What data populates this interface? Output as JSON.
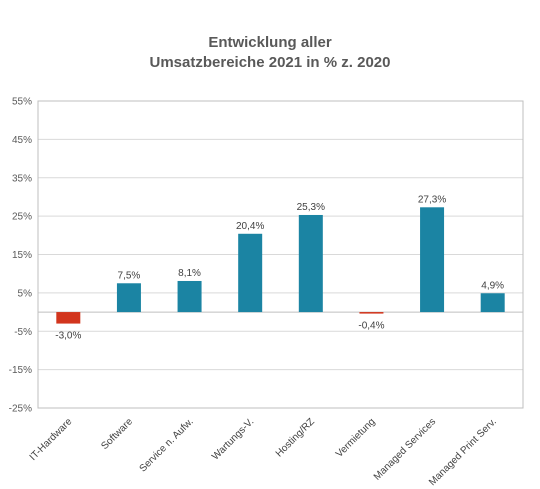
{
  "chart_data": {
    "type": "bar",
    "title_line1": "Entwicklung aller",
    "title_line2": "Umsatzbereiche 2021 in % z. 2020",
    "categories": [
      "IT-Hardware",
      "Software",
      "Service n. Aufw.",
      "Wartungs-V.",
      "Hosting/RZ",
      "Vermietung",
      "Managed Services",
      "Managed Print Serv."
    ],
    "values": [
      -3.0,
      7.5,
      8.1,
      20.4,
      25.3,
      -0.4,
      27.3,
      4.9
    ],
    "data_labels": [
      "-3,0%",
      "7,5%",
      "8,1%",
      "20,4%",
      "25,3%",
      "-0,4%",
      "27,3%",
      "4,9%"
    ],
    "ylim": [
      -25,
      55
    ],
    "yticks": [
      55,
      45,
      35,
      25,
      15,
      5,
      -5,
      -15,
      -25
    ],
    "ytick_labels": [
      "55%",
      "45%",
      "35%",
      "25%",
      "15%",
      "5%",
      "-5%",
      "-15%",
      "-25%"
    ],
    "grid": true,
    "colors": {
      "positive": "#1b84a3",
      "negative": "#d2351d",
      "grid": "#d9d9d9",
      "axis": "#bfbfbf"
    }
  }
}
